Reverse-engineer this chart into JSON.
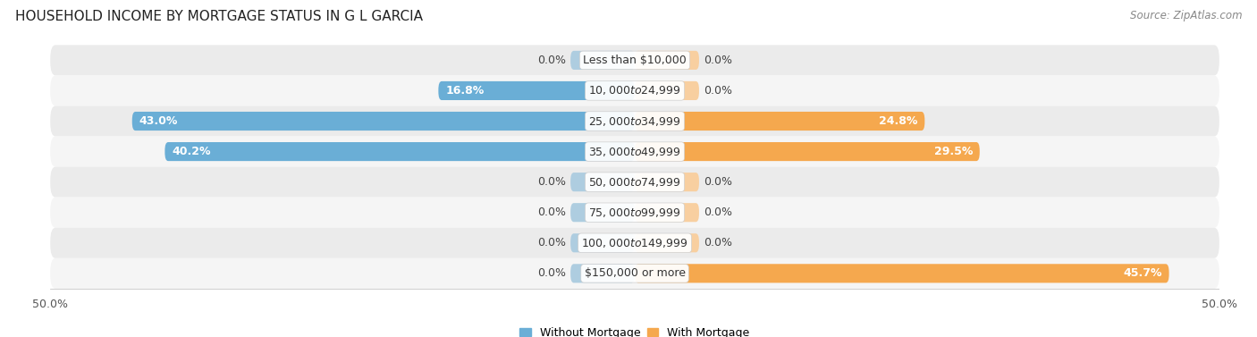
{
  "title": "HOUSEHOLD INCOME BY MORTGAGE STATUS IN G L GARCIA",
  "source": "Source: ZipAtlas.com",
  "categories": [
    "Less than $10,000",
    "$10,000 to $24,999",
    "$25,000 to $34,999",
    "$35,000 to $49,999",
    "$50,000 to $74,999",
    "$75,000 to $99,999",
    "$100,000 to $149,999",
    "$150,000 or more"
  ],
  "without_mortgage": [
    0.0,
    16.8,
    43.0,
    40.2,
    0.0,
    0.0,
    0.0,
    0.0
  ],
  "with_mortgage": [
    0.0,
    0.0,
    24.8,
    29.5,
    0.0,
    0.0,
    0.0,
    45.7
  ],
  "color_without": "#6aaed6",
  "color_with": "#f5a84e",
  "color_without_zero": "#aecde0",
  "color_with_zero": "#f8cfa0",
  "row_colors": [
    "#ebebeb",
    "#f5f5f5",
    "#ebebeb",
    "#f5f5f5",
    "#ebebeb",
    "#f5f5f5",
    "#ebebeb",
    "#f5f5f5"
  ],
  "xlim_left": -50.0,
  "xlim_right": 50.0,
  "zero_stub": 5.5,
  "label_fontsize": 9,
  "cat_fontsize": 9,
  "title_fontsize": 11,
  "source_fontsize": 8.5,
  "bar_height": 0.62,
  "legend_labels": [
    "Without Mortgage",
    "With Mortgage"
  ]
}
